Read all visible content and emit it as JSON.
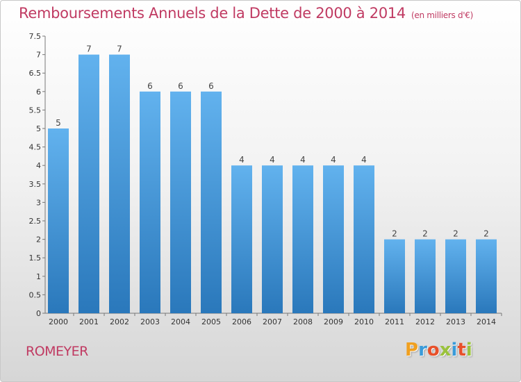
{
  "header": {
    "title": "Remboursements Annuels de la Dette de 2000 à 2014",
    "unit": "(en milliers d'€)"
  },
  "footer": {
    "place": "ROMEYER",
    "brand": "Proxiti",
    "brand_colors": [
      "#f0a020",
      "#3a9bd9",
      "#e8502a",
      "#9ac23c",
      "#3a9bd9",
      "#e8502a",
      "#9ac23c"
    ]
  },
  "chart_data": {
    "type": "bar",
    "title": "Remboursements Annuels de la Dette de 2000 à 2014",
    "subtitle": "(en milliers d'€)",
    "xlabel": "",
    "ylabel": "",
    "categories": [
      "2000",
      "2001",
      "2002",
      "2003",
      "2004",
      "2005",
      "2006",
      "2007",
      "2008",
      "2009",
      "2010",
      "2011",
      "2012",
      "2013",
      "2014"
    ],
    "values": [
      5,
      7,
      7,
      6,
      6,
      6,
      4,
      4,
      4,
      4,
      4,
      2,
      2,
      2,
      2
    ],
    "data_labels": [
      "5",
      "7",
      "7",
      "6",
      "6",
      "6",
      "4",
      "4",
      "4",
      "4",
      "4",
      "2",
      "2",
      "2",
      "2"
    ],
    "yticks": [
      "0",
      "0.5",
      "1",
      "1.5",
      "2",
      "2.5",
      "3",
      "3.5",
      "4",
      "4.5",
      "5",
      "5.5",
      "6",
      "6.5",
      "7",
      "7.5"
    ],
    "ylim": [
      0,
      7.5
    ],
    "grid": false,
    "bar_color": "#3d8fd4"
  }
}
